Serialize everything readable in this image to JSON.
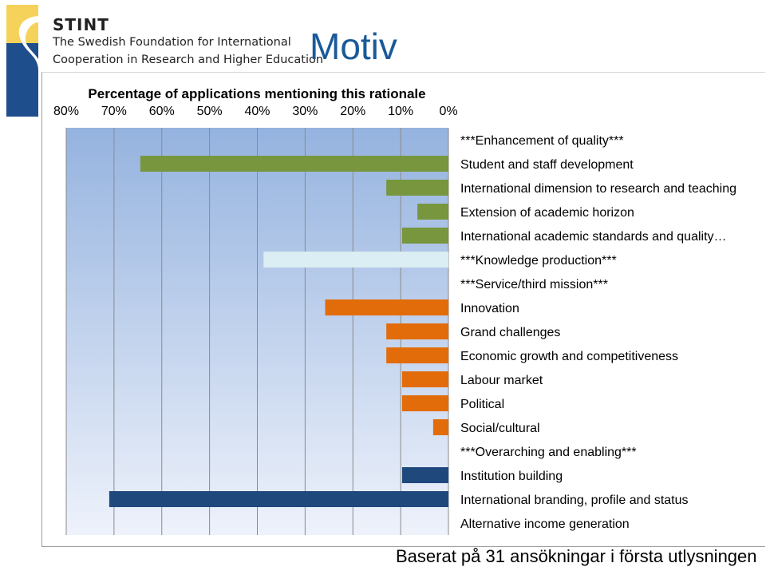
{
  "header": {
    "org_short": "STINT",
    "org_line1": "The Swedish Foundation for International",
    "org_line2": "Cooperation in Research and Higher Education",
    "slide_title": "Motiv"
  },
  "footnote": "Baserat på 31 ansökningar i första utlysningen",
  "colors": {
    "quality": "#77963e",
    "knowledge": "#daeef3",
    "service": "#e36c0a",
    "overarching": "#1f497d",
    "plot_top": "#95b3df",
    "plot_bottom": "#eef2fb",
    "logo_yellow": "#f5d25a",
    "logo_blue": "#1f4e8c"
  },
  "chart_data": {
    "type": "bar",
    "orientation": "horizontal",
    "x_direction": "reversed",
    "title": "Percentage of applications mentioning this rationale",
    "xlim": [
      0,
      80
    ],
    "xticks": [
      "80%",
      "70%",
      "60%",
      "50%",
      "40%",
      "30%",
      "20%",
      "10%",
      "0%"
    ],
    "x_axis_position": "top",
    "grid": true,
    "categories": [
      "***Enhancement of quality***",
      "Student and staff development",
      "International dimension to research and teaching",
      "Extension of academic horizon",
      "International academic standards and quality…",
      "***Knowledge production***",
      "***Service/third mission***",
      "Innovation",
      "Grand challenges",
      "Economic growth and competitiveness",
      "Labour market",
      "Political",
      "Social/cultural",
      "***Overarching and enabling***",
      "Institution building",
      "International branding, profile and status",
      "Alternative income generation"
    ],
    "values": [
      null,
      64.5,
      13,
      6.5,
      9.7,
      38.7,
      null,
      25.8,
      13,
      13,
      9.7,
      9.7,
      3.2,
      null,
      9.7,
      71,
      null
    ],
    "bar_group": [
      "header",
      "quality",
      "quality",
      "quality",
      "quality",
      "knowledge",
      "header",
      "service",
      "service",
      "service",
      "service",
      "service",
      "service",
      "header",
      "overarching",
      "overarching",
      "overarching"
    ]
  }
}
